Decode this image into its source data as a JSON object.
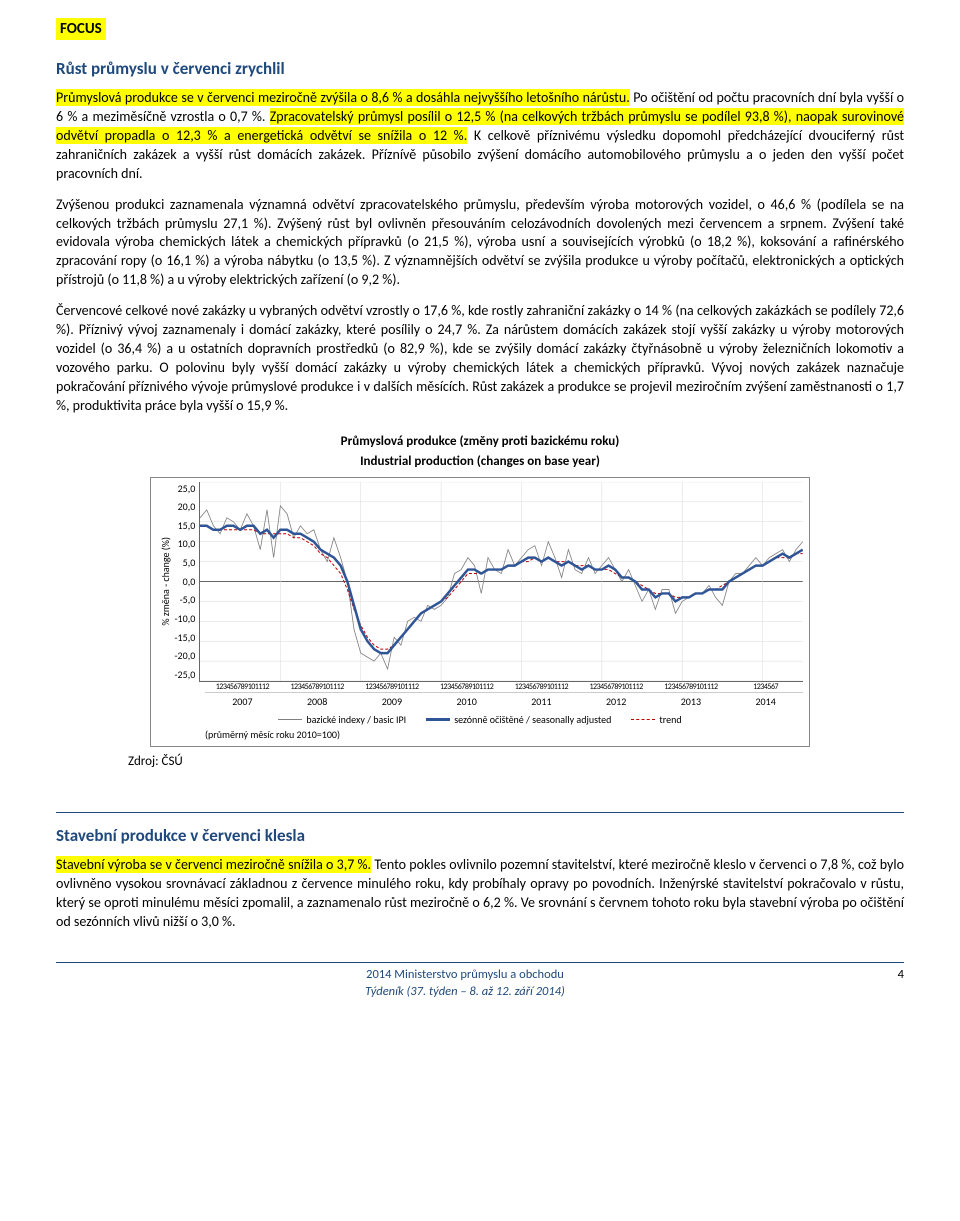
{
  "focus_label": "FOCUS",
  "sections": {
    "industry": {
      "heading": "Růst průmyslu v červenci zrychlil",
      "intro_highlight_1": "Průmyslová produkce se v červenci meziročně zvýšila o 8,6 % a dosáhla nejvyššího letošního nárůstu.",
      "intro_plain_1": " Po očištění od počtu pracovních dní byla vyšší o 6 % a meziměsíčně vzrostla o 0,7 %. ",
      "intro_highlight_2": "Zpracovatelský průmysl posílil o 12,5 % (na celkových tržbách průmyslu se podílel 93,8 %), naopak surovinové odvětví propadla o 12,3 % a energetická odvětví se snížila o 12 %.",
      "intro_plain_2": " K celkově příznivému výsledku dopomohl předcházející dvouciferný růst zahraničních zakázek a vyšší růst domácích zakázek. Příznívě působilo zvýšení domácího automobilového průmyslu a o jeden den vyšší počet pracovních dní.",
      "p2": "Zvýšenou produkci zaznamenala významná odvětví zpracovatelského průmyslu, především výroba motorových vozidel, o 46,6 % (podílela se na celkových tržbách průmyslu 27,1 %). Zvýšený růst byl ovlivněn přesouváním celozávodních dovolených mezi červencem a srpnem. Zvýšení také evidovala výroba chemických látek a chemických přípravků (o 21,5 %), výroba usní a souvisejících výrobků (o 18,2 %), koksování a rafinérského zpracování ropy (o 16,1 %) a výroba nábytku (o 13,5 %). Z významnějších odvětví se zvýšila produkce u výroby počítačů, elektronických a optických přístrojů (o 11,8 %) a u výroby elektrických zařízení (o 9,2 %).",
      "p3": "Červencové celkové nové zakázky u vybraných odvětví vzrostly o 17,6 %, kde rostly zahraniční zakázky o 14 % (na celkových zakázkách se podílely 72,6 %). Příznivý vývoj zaznamenaly i domácí zakázky, které posílily o 24,7 %. Za nárůstem domácích zakázek stojí vyšší zakázky u výroby motorových vozidel (o 36,4 %) a u ostatních dopravních prostředků (o 82,9 %), kde se zvýšily domácí zakázky čtyřnásobně u výroby železničních lokomotiv a vozového parku. O polovinu byly vyšší domácí zakázky u výroby chemických látek a chemických přípravků. Vývoj nových zakázek naznačuje pokračování příznivého vývoje průmyslové produkce i v dalších měsících. Růst zakázek a produkce se projevil meziročním zvýšení zaměstnanosti o 1,7 %, produktivita práce byla vyšší o 15,9 %."
    },
    "construction": {
      "heading": "Stavební produkce v červenci klesla",
      "intro_highlight": "Stavební výroba se v červenci meziročně snížila o 3,7 %.",
      "intro_plain": " Tento pokles ovlivnilo pozemní stavitelství, které meziročně kleslo v červenci o 7,8 %, což bylo ovlivněno vysokou srovnávací základnou z července minulého roku, kdy probíhaly opravy po povodních. Inženýrské stavitelství pokračovalo v růstu, který se oproti minulému měsíci zpomalil, a zaznamenalo růst meziročně o 6,2 %. Ve srovnání s červnem tohoto roku byla stavební výroba po očištění od sezónních vlivů nižší o 3,0 %."
    }
  },
  "chart": {
    "title": "Průmyslová produkce (změny proti bazickému roku)",
    "subtitle": "Industrial production (changes on base year)",
    "ylabel": "% změna - change (%)",
    "ylim": [
      -25,
      25
    ],
    "yticks": [
      "25,0",
      "20,0",
      "15,0",
      "10,0",
      "5,0",
      "0,0",
      "-5,0",
      "-10,0",
      "-15,0",
      "-20,0",
      "-25,0"
    ],
    "years": [
      "2007",
      "2008",
      "2009",
      "2010",
      "2011",
      "2012",
      "2013",
      "2014"
    ],
    "xticks_per_year": "123456789101112",
    "xticks_last": "1234567",
    "legend": {
      "basic": "bazické indexy / basic IPI",
      "seasonal": "sezónně očištěné / seasonally adjusted",
      "trend": "trend"
    },
    "note": "(průměrný měsíc roku 2010=100)",
    "colors": {
      "basic": "#7f7f7f",
      "seasonal": "#2f5597",
      "trend": "#c00000",
      "grid": "#d9d9d9",
      "bg": "#ffffff"
    },
    "series": {
      "basic": [
        16,
        18,
        14,
        12,
        16,
        15,
        13,
        17,
        14,
        8,
        18,
        6,
        19,
        17,
        11,
        14,
        12,
        13,
        8,
        5,
        11,
        6,
        0,
        -12,
        -18,
        -19,
        -20,
        -18,
        -22,
        -14,
        -16,
        -10,
        -9,
        -10,
        -6,
        -7,
        -6,
        -4,
        2,
        3,
        6,
        4,
        -3,
        6,
        3,
        2,
        8,
        4,
        6,
        8,
        9,
        4,
        10,
        6,
        1,
        8,
        3,
        2,
        6,
        2,
        4,
        6,
        3,
        0,
        3,
        -1,
        -5,
        -2,
        -7,
        -2,
        -2,
        -8,
        -5,
        -4,
        -3,
        -3,
        -1,
        -4,
        -6,
        0,
        2,
        2,
        4,
        6,
        4,
        6,
        7,
        8,
        5,
        8,
        10
      ],
      "seasonal": [
        14,
        14,
        13,
        13,
        14,
        14,
        13,
        14,
        14,
        12,
        13,
        11,
        13,
        13,
        12,
        12,
        11,
        10,
        8,
        7,
        6,
        4,
        0,
        -6,
        -12,
        -15,
        -17,
        -18,
        -18,
        -16,
        -14,
        -12,
        -10,
        -8,
        -7,
        -6,
        -5,
        -3,
        -1,
        1,
        3,
        3,
        2,
        3,
        3,
        3,
        4,
        4,
        5,
        6,
        6,
        5,
        6,
        5,
        4,
        5,
        4,
        3,
        4,
        3,
        3,
        4,
        3,
        1,
        1,
        0,
        -2,
        -2,
        -4,
        -3,
        -3,
        -5,
        -4,
        -4,
        -3,
        -3,
        -2,
        -2,
        -2,
        0,
        1,
        2,
        3,
        4,
        4,
        5,
        6,
        7,
        6,
        7,
        8
      ],
      "trend": [
        14,
        14,
        13,
        13,
        13,
        13,
        13,
        13,
        13,
        12,
        12,
        12,
        12,
        12,
        11,
        11,
        10,
        9,
        7,
        6,
        4,
        2,
        -2,
        -7,
        -11,
        -14,
        -16,
        -17,
        -17,
        -16,
        -14,
        -12,
        -10,
        -8,
        -7,
        -6,
        -5,
        -4,
        -2,
        0,
        2,
        2,
        2,
        3,
        3,
        3,
        4,
        4,
        5,
        5,
        6,
        5,
        6,
        5,
        5,
        5,
        4,
        4,
        4,
        3,
        3,
        3,
        2,
        1,
        1,
        0,
        -1,
        -2,
        -3,
        -3,
        -3,
        -4,
        -4,
        -4,
        -3,
        -3,
        -2,
        -2,
        -1,
        0,
        1,
        2,
        3,
        4,
        4,
        5,
        6,
        6,
        6,
        7,
        7
      ]
    },
    "source": "Zdroj: ČSÚ"
  },
  "footer": {
    "line1": "2014 Ministerstvo průmyslu a obchodu",
    "line2": "Týdeník (37. týden – 8. až 12. září 2014)",
    "page": "4"
  }
}
